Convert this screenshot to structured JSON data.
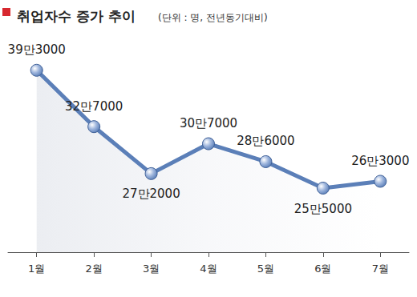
{
  "chart_data": {
    "type": "line",
    "title": "취업자수 증가 추이",
    "subtitle": "(단위 : 명, 전년동기대비)",
    "categories": [
      "1월",
      "2월",
      "3월",
      "4월",
      "5월",
      "6월",
      "7월"
    ],
    "values": [
      393000,
      327000,
      272000,
      307000,
      286000,
      255000,
      263000
    ],
    "value_labels": [
      "39만3000",
      "32만7000",
      "27만2000",
      "30만7000",
      "28만6000",
      "25만5000",
      "26만3000"
    ],
    "color": "#5b7fb8",
    "marker": "circle",
    "line_style": "solid",
    "ylim": [
      180000,
      420000
    ],
    "grid": false,
    "data_labels": true,
    "tick_labels": "x"
  }
}
